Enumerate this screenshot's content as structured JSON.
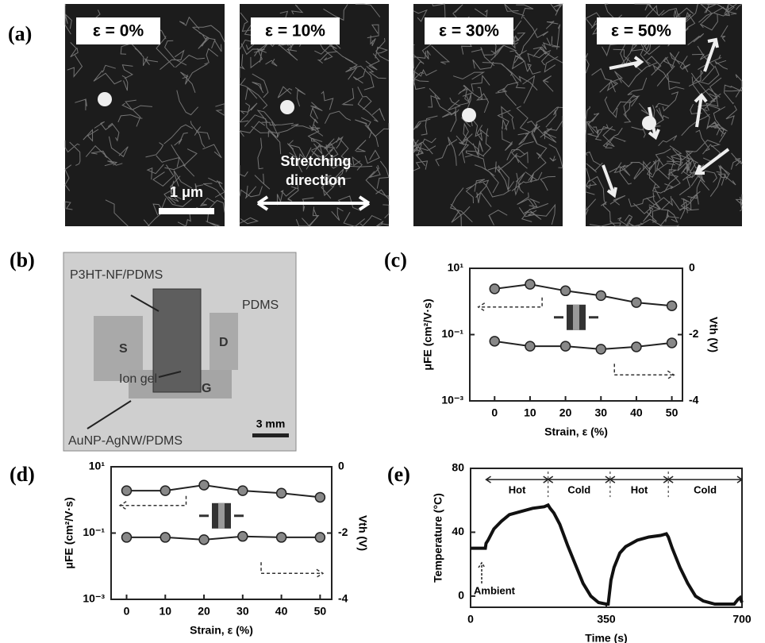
{
  "panels": {
    "a": {
      "label": "(a)",
      "captions": [
        "ε = 0%",
        "ε = 10%",
        "ε = 30%",
        "ε = 50%"
      ],
      "scale_bar": "1 μm",
      "stretch_note": [
        "Stretching",
        "direction"
      ]
    },
    "b": {
      "label": "(b)",
      "top_film": "P3HT-NF/PDMS",
      "substrate": "PDMS",
      "source": "S",
      "drain": "D",
      "dielectric": "Ion gel",
      "gate": "G",
      "gate_film": "AuNP-AgNW/PDMS",
      "scale_bar": "3 mm"
    }
  },
  "chart_data": [
    {
      "type": "line",
      "label": "(c)",
      "xlabel": "Strain, ε (%)",
      "ylabel": "μFE (cm²/V·s)",
      "y2label": "Vth (V)",
      "x": [
        0,
        10,
        20,
        30,
        40,
        50
      ],
      "xlim": [
        -7,
        53
      ],
      "xticks": [
        0,
        10,
        20,
        30,
        40,
        50
      ],
      "ylog": true,
      "ylim": [
        0.001,
        10
      ],
      "yticks": [
        {
          "value": 10,
          "label": "10¹"
        },
        {
          "value": 0.1,
          "label": "10⁻¹"
        },
        {
          "value": 0.001,
          "label": "10⁻³"
        }
      ],
      "y2lim": [
        -4,
        0
      ],
      "y2ticks": [
        0,
        -2,
        -4
      ],
      "series": [
        {
          "color": "#222",
          "values": [
            2.4,
            3.3,
            2.1,
            1.5,
            0.93,
            0.74
          ]
        },
        {
          "color": "#222",
          "axis": "y2",
          "values": [
            -2.2,
            -2.35,
            -2.35,
            -2.44,
            -2.37,
            -2.25
          ]
        }
      ]
    },
    {
      "type": "line",
      "label": "(d)",
      "xlabel": "Strain, ε (%)",
      "ylabel": "μFE (cm²/V·s)",
      "y2label": "Vth (V)",
      "x": [
        0,
        10,
        20,
        30,
        40,
        50
      ],
      "xlim": [
        -4,
        53
      ],
      "xticks": [
        0,
        10,
        20,
        30,
        40,
        50
      ],
      "ylog": true,
      "ylim": [
        0.001,
        10
      ],
      "yticks": [
        {
          "value": 10,
          "label": "10¹"
        },
        {
          "value": 0.1,
          "label": "10⁻¹"
        },
        {
          "value": 0.001,
          "label": "10⁻³"
        }
      ],
      "y2lim": [
        -4,
        0
      ],
      "y2ticks": [
        0,
        -2,
        -4
      ],
      "series": [
        {
          "color": "#222",
          "values": [
            1.9,
            1.9,
            2.8,
            1.9,
            1.6,
            1.2
          ]
        },
        {
          "color": "#222",
          "axis": "y2",
          "values": [
            -2.13,
            -2.13,
            -2.2,
            -2.1,
            -2.13,
            -2.13
          ]
        }
      ]
    },
    {
      "type": "line",
      "label": "(e)",
      "xlabel": "Time (s)",
      "ylabel": "Temperature (°C)",
      "x": [
        0,
        38,
        40,
        45,
        60,
        80,
        100,
        130,
        160,
        190,
        200,
        205,
        215,
        230,
        250,
        270,
        290,
        310,
        330,
        350,
        355,
        362,
        370,
        385,
        400,
        430,
        460,
        490,
        505,
        510,
        520,
        540,
        560,
        580,
        600,
        630,
        660,
        680,
        690,
        695,
        700
      ],
      "xlim": [
        0,
        700
      ],
      "xticks": [
        0,
        350,
        700
      ],
      "ylim": [
        -7,
        80
      ],
      "yticks": [
        0,
        40,
        80
      ],
      "series": [
        {
          "color": "#111",
          "values": [
            30,
            30,
            33,
            35,
            42,
            47,
            51,
            53,
            55,
            56,
            57,
            55,
            52,
            45,
            32,
            20,
            8,
            0,
            -4,
            -5,
            -5,
            10,
            18,
            27,
            31,
            35,
            37,
            38,
            39,
            37,
            30,
            18,
            8,
            0,
            -3,
            -5,
            -5,
            -5,
            -2,
            -1,
            -4
          ]
        }
      ],
      "phases": [
        {
          "text": "Hot",
          "start": 40,
          "end": 200
        },
        {
          "text": "Cold",
          "start": 200,
          "end": 360
        },
        {
          "text": "Hot",
          "start": 360,
          "end": 510
        },
        {
          "text": "Cold",
          "start": 510,
          "end": 700
        }
      ],
      "annotation": "Ambient"
    }
  ]
}
